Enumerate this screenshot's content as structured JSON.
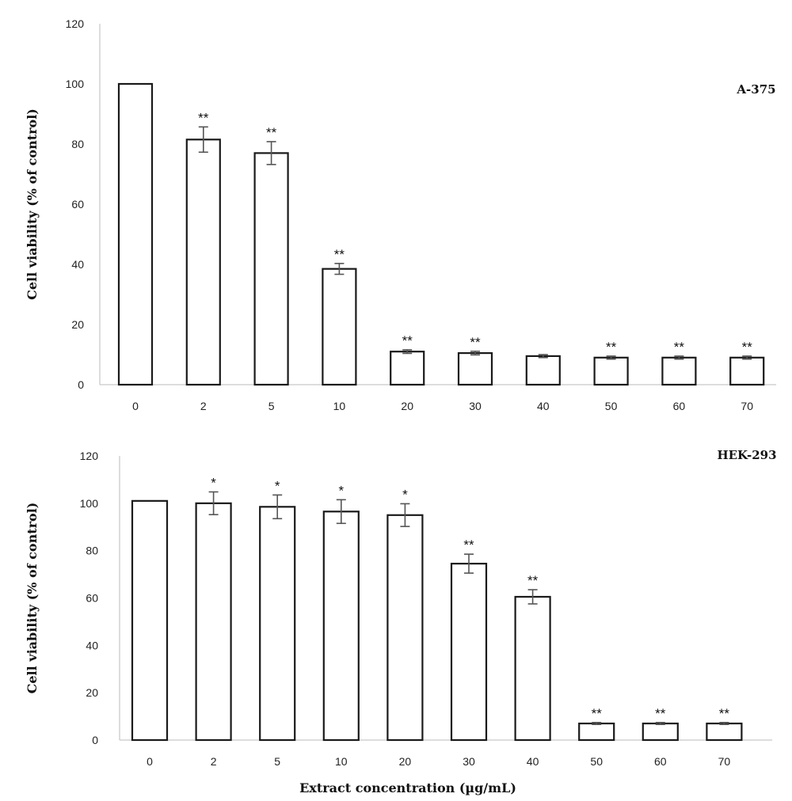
{
  "chart_data": [
    {
      "type": "bar",
      "panel_label": "A-375",
      "categories": [
        "0",
        "2",
        "5",
        "10",
        "20",
        "30",
        "40",
        "50",
        "60",
        "70"
      ],
      "values": [
        100,
        81.5,
        77,
        38.5,
        11,
        10.5,
        9.5,
        9,
        9,
        9
      ],
      "errors": [
        0,
        4.2,
        3.8,
        1.8,
        0.6,
        0.6,
        0.5,
        0.5,
        0.5,
        0.5
      ],
      "significance": [
        "",
        "**",
        "**",
        "**",
        "**",
        "**",
        "",
        "**",
        "**",
        "**"
      ],
      "ylabel": "Cell viability (% of control)",
      "xlabel": "",
      "ylim": [
        0,
        120
      ],
      "yticks": [
        0,
        20,
        40,
        60,
        80,
        100,
        120
      ]
    },
    {
      "type": "bar",
      "panel_label": "HEK-293",
      "categories": [
        "0",
        "2",
        "5",
        "10",
        "20",
        "30",
        "40",
        "50",
        "60",
        "70"
      ],
      "values": [
        101,
        100,
        98.5,
        96.5,
        95,
        74.5,
        60.5,
        7,
        7,
        7
      ],
      "errors": [
        0,
        4.8,
        5,
        5,
        4.8,
        4,
        3,
        0.4,
        0.4,
        0.4
      ],
      "significance": [
        "",
        "*",
        "*",
        "*",
        "*",
        "**",
        "**",
        "**",
        "**",
        "**"
      ],
      "ylabel": "Cell viability (% of control)",
      "xlabel": "Extract concentration (µg/mL)",
      "ylim": [
        0,
        120
      ],
      "yticks": [
        0,
        20,
        40,
        60,
        80,
        100,
        120
      ]
    }
  ]
}
